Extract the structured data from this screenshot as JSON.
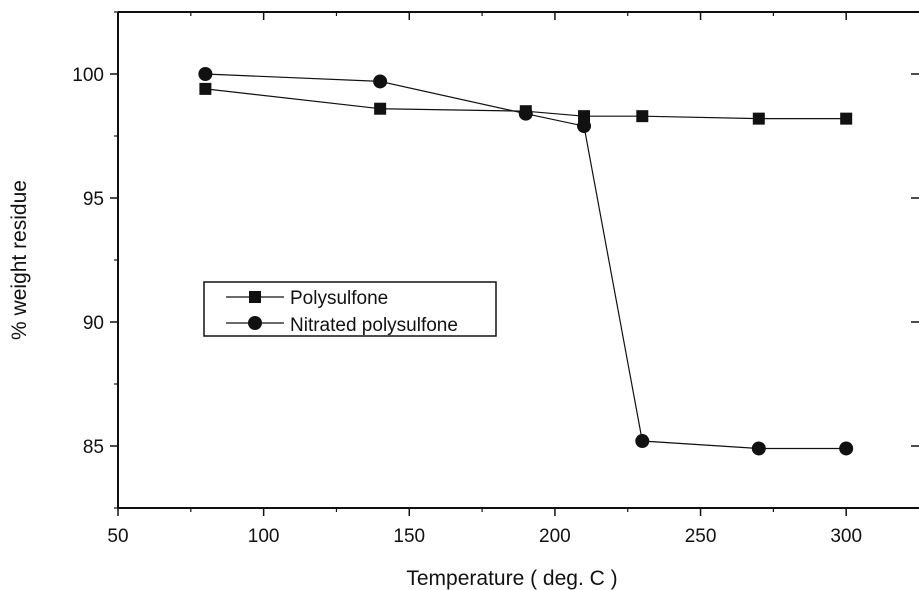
{
  "chart_data": {
    "type": "line",
    "title": "",
    "xlabel": "Temperature ( deg. C )",
    "ylabel": "% weight residue",
    "xlim": [
      50,
      325
    ],
    "ylim": [
      82.5,
      102.5
    ],
    "xticks": [
      50,
      100,
      150,
      200,
      250,
      300
    ],
    "yticks": [
      85,
      90,
      95,
      100
    ],
    "grid": false,
    "legend_position": "center-left",
    "series": [
      {
        "name": "Polysulfone",
        "marker": "square",
        "color": "#111111",
        "points": [
          [
            80,
            99.4
          ],
          [
            140,
            98.6
          ],
          [
            190,
            98.5
          ],
          [
            210,
            98.3
          ],
          [
            230,
            98.3
          ],
          [
            270,
            98.2
          ],
          [
            300,
            98.2
          ]
        ]
      },
      {
        "name": "Nitrated polysulfone",
        "marker": "circle",
        "color": "#111111",
        "points": [
          [
            80,
            100.0
          ],
          [
            140,
            99.7
          ],
          [
            190,
            98.4
          ],
          [
            210,
            97.9
          ],
          [
            230,
            85.2
          ],
          [
            270,
            84.9
          ],
          [
            300,
            84.9
          ]
        ]
      }
    ]
  }
}
